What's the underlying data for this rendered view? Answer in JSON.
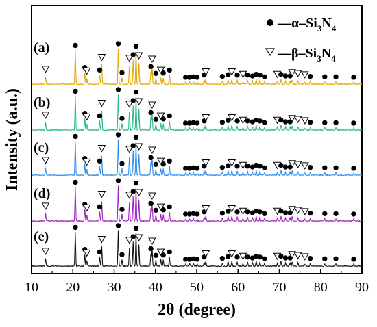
{
  "chart_data": {
    "type": "line",
    "title": "",
    "xlabel": "2θ (degree)",
    "ylabel": "Intensity (a.u.)",
    "xlim": [
      10,
      90
    ],
    "x_ticks": [
      10,
      20,
      30,
      40,
      50,
      60,
      70,
      80,
      90
    ],
    "grid": false,
    "legend_position": "top-right",
    "legend": [
      {
        "symbol": "dot",
        "label": "—α–Si",
        "sub": "3",
        "tail": "N",
        "sub2": "4"
      },
      {
        "symbol": "triangle",
        "label": "—β–Si",
        "sub": "3",
        "tail": "N",
        "sub2": "4"
      }
    ],
    "series": [
      {
        "name": "(a)",
        "color": "#E0A800"
      },
      {
        "name": "(b)",
        "color": "#2DB886"
      },
      {
        "name": "(c)",
        "color": "#2F8DEB"
      },
      {
        "name": "(d)",
        "color": "#A020C0"
      },
      {
        "name": "(e)",
        "color": "#111111"
      }
    ],
    "peaks": [
      {
        "x": 13.4,
        "h": 0.18,
        "phase": "beta"
      },
      {
        "x": 20.6,
        "h": 0.8,
        "phase": "alpha"
      },
      {
        "x": 22.9,
        "h": 0.28,
        "phase": "alpha"
      },
      {
        "x": 23.4,
        "h": 0.14,
        "phase": "beta"
      },
      {
        "x": 26.5,
        "h": 0.22,
        "phase": "alpha"
      },
      {
        "x": 27.0,
        "h": 0.46,
        "phase": "beta"
      },
      {
        "x": 31.0,
        "h": 0.84,
        "phase": "alpha"
      },
      {
        "x": 31.9,
        "h": 0.16,
        "phase": "alpha"
      },
      {
        "x": 33.7,
        "h": 0.44,
        "phase": "beta"
      },
      {
        "x": 34.6,
        "h": 0.58,
        "phase": "alpha"
      },
      {
        "x": 35.3,
        "h": 0.78,
        "phase": "alpha"
      },
      {
        "x": 36.0,
        "h": 0.5,
        "phase": "beta"
      },
      {
        "x": 38.9,
        "h": 0.3,
        "phase": "alpha"
      },
      {
        "x": 39.2,
        "h": 0.42,
        "phase": "beta"
      },
      {
        "x": 40.1,
        "h": 0.14,
        "phase": "alpha"
      },
      {
        "x": 41.3,
        "h": 0.16,
        "phase": "beta"
      },
      {
        "x": 41.9,
        "h": 0.15,
        "phase": "alpha"
      },
      {
        "x": 43.4,
        "h": 0.22,
        "phase": "alpha"
      },
      {
        "x": 47.3,
        "h": 0.05,
        "phase": "alpha"
      },
      {
        "x": 48.3,
        "h": 0.05,
        "phase": "alpha"
      },
      {
        "x": 49.2,
        "h": 0.06,
        "phase": "alpha"
      },
      {
        "x": 50.1,
        "h": 0.05,
        "phase": "alpha"
      },
      {
        "x": 51.8,
        "h": 0.1,
        "phase": "alpha"
      },
      {
        "x": 52.2,
        "h": 0.12,
        "phase": "beta"
      },
      {
        "x": 56.2,
        "h": 0.07,
        "phase": "alpha"
      },
      {
        "x": 57.6,
        "h": 0.11,
        "phase": "alpha"
      },
      {
        "x": 58.5,
        "h": 0.12,
        "phase": "beta"
      },
      {
        "x": 59.8,
        "h": 0.1,
        "phase": "alpha"
      },
      {
        "x": 61.2,
        "h": 0.06,
        "phase": "beta"
      },
      {
        "x": 62.3,
        "h": 0.1,
        "phase": "alpha"
      },
      {
        "x": 63.5,
        "h": 0.08,
        "phase": "alpha"
      },
      {
        "x": 64.4,
        "h": 0.12,
        "phase": "alpha"
      },
      {
        "x": 65.3,
        "h": 0.1,
        "phase": "alpha"
      },
      {
        "x": 66.4,
        "h": 0.06,
        "phase": "alpha"
      },
      {
        "x": 69.5,
        "h": 0.06,
        "phase": "beta"
      },
      {
        "x": 70.4,
        "h": 0.12,
        "phase": "alpha"
      },
      {
        "x": 71.5,
        "h": 0.08,
        "phase": "alpha"
      },
      {
        "x": 72.6,
        "h": 0.08,
        "phase": "alpha"
      },
      {
        "x": 73.1,
        "h": 0.1,
        "phase": "beta"
      },
      {
        "x": 74.5,
        "h": 0.08,
        "phase": "beta"
      },
      {
        "x": 76.2,
        "h": 0.05,
        "phase": "beta"
      },
      {
        "x": 77.5,
        "h": 0.07,
        "phase": "alpha"
      },
      {
        "x": 81.0,
        "h": 0.06,
        "phase": "alpha"
      },
      {
        "x": 83.7,
        "h": 0.06,
        "phase": "alpha"
      },
      {
        "x": 88.0,
        "h": 0.05,
        "phase": "alpha"
      }
    ]
  }
}
